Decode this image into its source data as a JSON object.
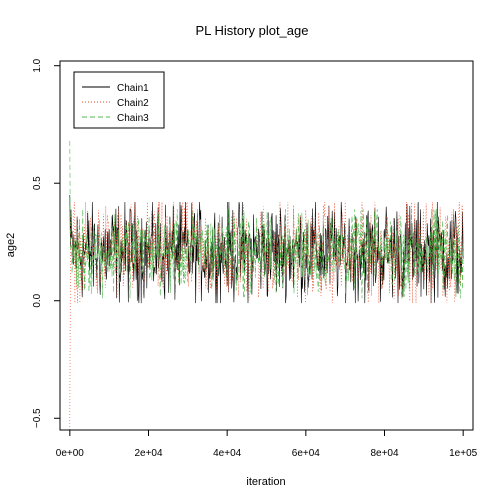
{
  "chart_data": {
    "type": "line",
    "title": "PL History plot_age",
    "xlabel": "iteration",
    "ylabel": "age2",
    "xlim": [
      0,
      100000
    ],
    "ylim": [
      -0.55,
      1.02
    ],
    "x_ticks": [
      {
        "value": 0,
        "label": "0e+00"
      },
      {
        "value": 20000,
        "label": "2e+04"
      },
      {
        "value": 40000,
        "label": "4e+04"
      },
      {
        "value": 60000,
        "label": "6e+04"
      },
      {
        "value": 80000,
        "label": "8e+04"
      },
      {
        "value": 100000,
        "label": "1e+05"
      }
    ],
    "y_ticks": [
      {
        "value": -0.5,
        "label": "−0.5"
      },
      {
        "value": 0.0,
        "label": "0.0"
      },
      {
        "value": 0.5,
        "label": "0.5"
      },
      {
        "value": 1.0,
        "label": "1.0"
      }
    ],
    "legend_position": "top-left",
    "series": [
      {
        "name": "Chain1",
        "color": "#000000",
        "line_style": "solid",
        "start_value": 0.45,
        "mean": 0.21,
        "band": [
          0.03,
          0.38
        ]
      },
      {
        "name": "Chain2",
        "color": "#e8431f",
        "line_style": "dotted",
        "start_value": -0.55,
        "mean": 0.21,
        "band": [
          0.03,
          0.38
        ]
      },
      {
        "name": "Chain3",
        "color": "#4cb84c",
        "line_style": "dashed",
        "start_value": 0.68,
        "mean": 0.21,
        "band": [
          0.05,
          0.35
        ]
      }
    ]
  }
}
